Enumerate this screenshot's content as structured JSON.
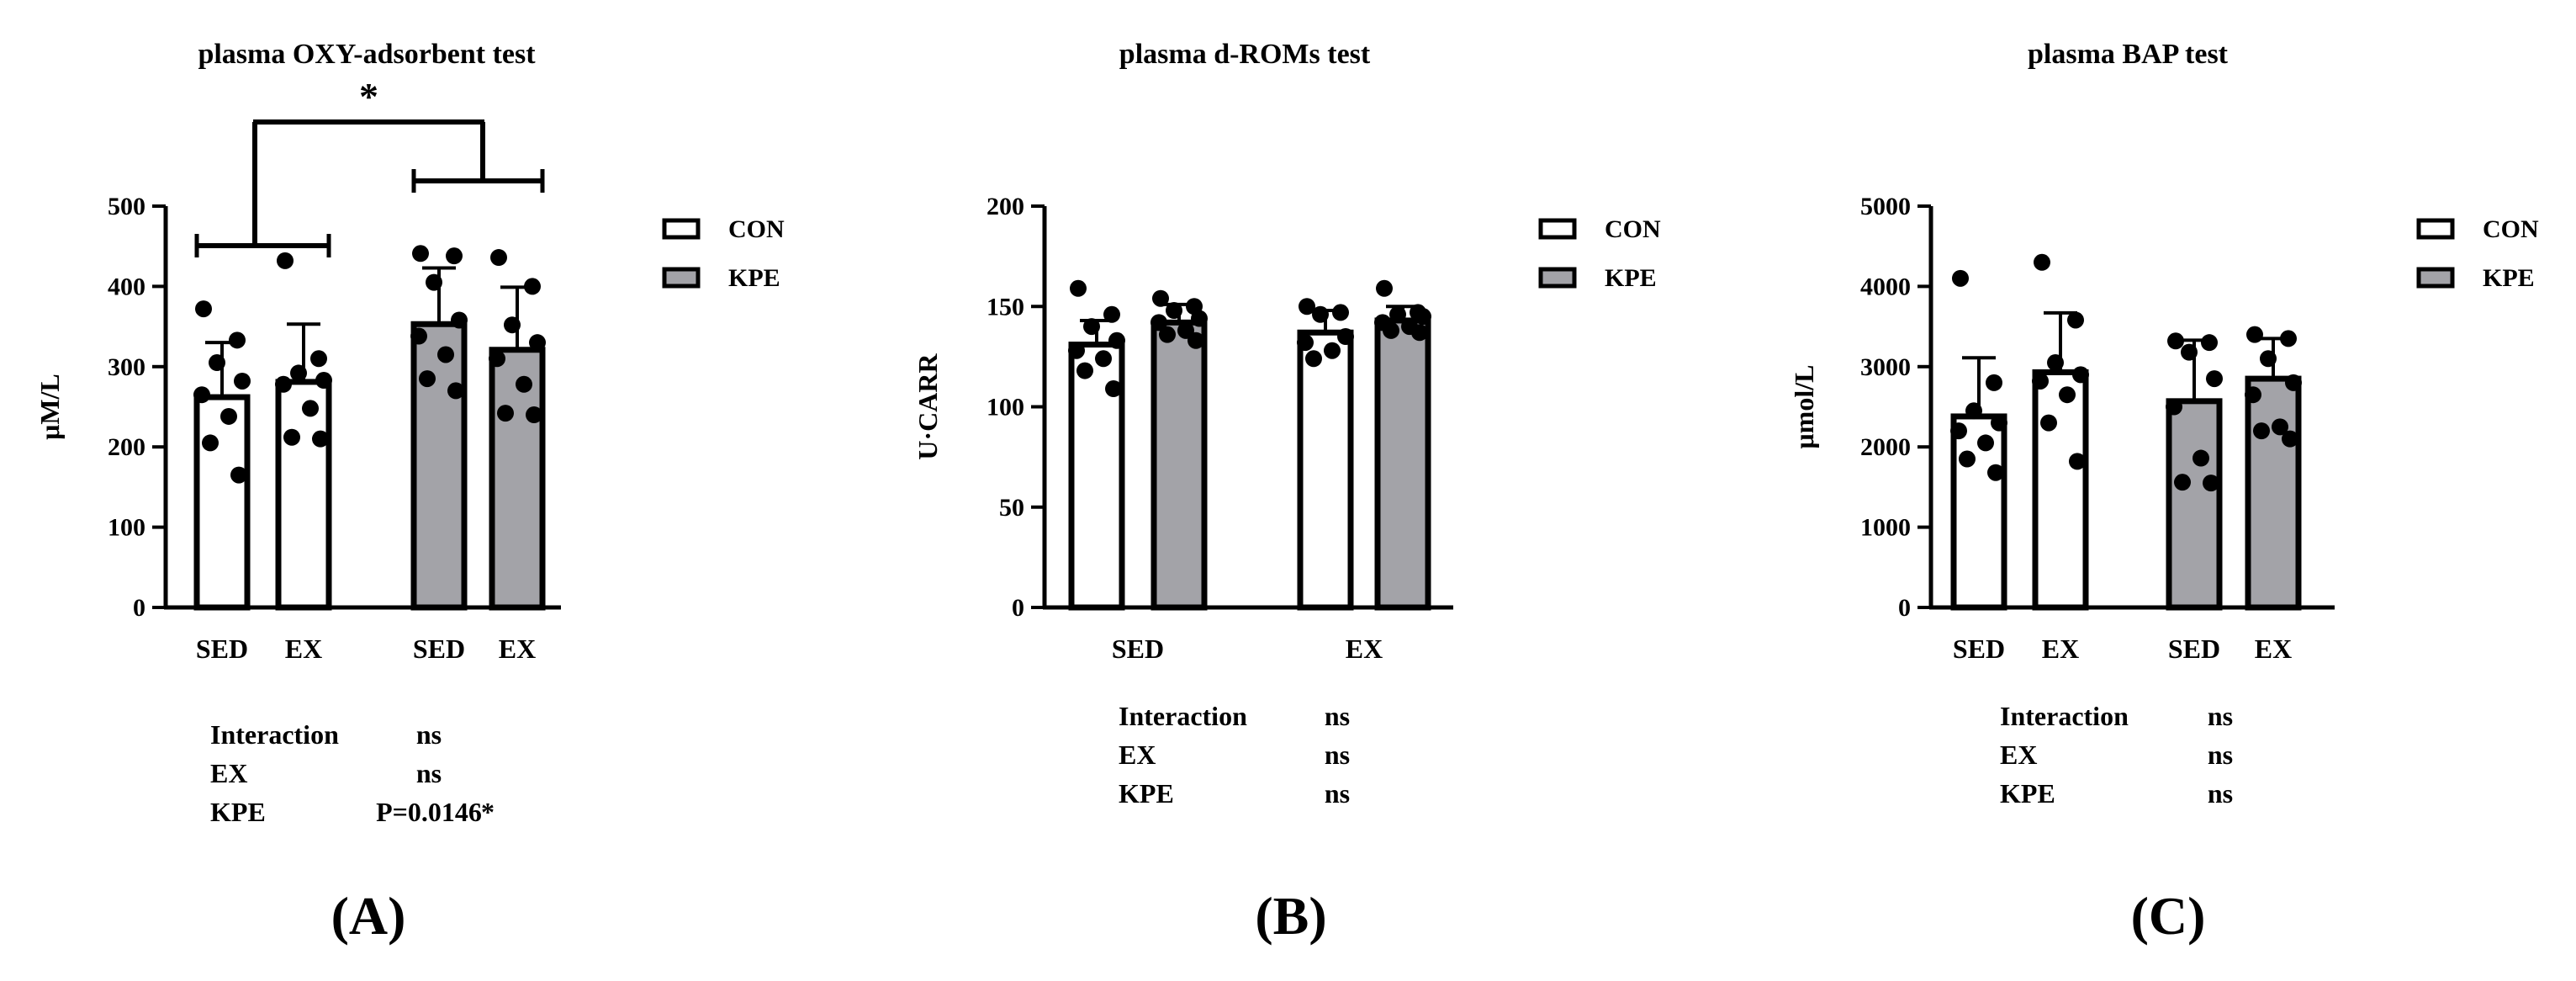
{
  "colors": {
    "con": "#ffffff",
    "kpe": "#a3a3a8",
    "ink": "#000000"
  },
  "chart_data": [
    {
      "type": "bar",
      "title": "plasma OXY-adsorbent test",
      "ylabel": "μM/L",
      "ylim": [
        0,
        500
      ],
      "yticks": [
        "0",
        "100",
        "200",
        "300",
        "400",
        "500"
      ],
      "grouping": "by_group",
      "categories": [
        "SED",
        "EX",
        "SED",
        "EX"
      ],
      "legend": [
        "CON",
        "KPE"
      ],
      "bars": [
        {
          "group": "CON",
          "category": "SED",
          "mean": 262,
          "sd": 68,
          "points": [
            372,
            333,
            305,
            282,
            265,
            238,
            205,
            165
          ]
        },
        {
          "group": "CON",
          "category": "EX",
          "mean": 281,
          "sd": 72,
          "points": [
            432,
            310,
            292,
            283,
            278,
            248,
            212,
            210
          ]
        },
        {
          "group": "KPE",
          "category": "SED",
          "mean": 353,
          "sd": 70,
          "points": [
            441,
            438,
            405,
            358,
            338,
            315,
            285,
            270
          ]
        },
        {
          "group": "KPE",
          "category": "EX",
          "mean": 321,
          "sd": 78,
          "points": [
            436,
            400,
            352,
            330,
            310,
            278,
            242,
            240
          ]
        }
      ],
      "significance": {
        "label": "*"
      },
      "stats": [
        {
          "label": "Interaction",
          "value": "ns",
          "star": ""
        },
        {
          "label": "EX",
          "value": "ns",
          "star": ""
        },
        {
          "label": "KPE",
          "value": "P=0.0146",
          "star": "*"
        }
      ],
      "panel_label": "(A)"
    },
    {
      "type": "bar",
      "title": "plasma d-ROMs test",
      "ylabel": "U·CARR",
      "ylim": [
        0,
        200
      ],
      "yticks": [
        "0",
        "50",
        "100",
        "150",
        "200"
      ],
      "grouping": "by_category",
      "categories": [
        "SED",
        "EX"
      ],
      "legend": [
        "CON",
        "KPE"
      ],
      "bars": [
        {
          "group": "CON",
          "category": "SED",
          "mean": 131,
          "sd": 12,
          "points": [
            159,
            146,
            140,
            133,
            128,
            124,
            118,
            109
          ]
        },
        {
          "group": "KPE",
          "category": "SED",
          "mean": 142,
          "sd": 9,
          "points": [
            154,
            150,
            148,
            144,
            142,
            138,
            136,
            133
          ]
        },
        {
          "group": "CON",
          "category": "EX",
          "mean": 137,
          "sd": 11,
          "points": [
            150,
            147,
            146,
            135,
            132,
            128,
            124
          ]
        },
        {
          "group": "KPE",
          "category": "EX",
          "mean": 143,
          "sd": 7,
          "points": [
            159,
            147,
            146,
            145,
            142,
            140,
            138,
            137
          ]
        }
      ],
      "stats": [
        {
          "label": "Interaction",
          "value": "ns",
          "star": ""
        },
        {
          "label": "EX",
          "value": "ns",
          "star": ""
        },
        {
          "label": "KPE",
          "value": "ns",
          "star": ""
        }
      ],
      "panel_label": "(B)"
    },
    {
      "type": "bar",
      "title": "plasma BAP test",
      "ylabel": "μmol/L",
      "ylim": [
        0,
        5000
      ],
      "yticks": [
        "0",
        "1000",
        "2000",
        "3000",
        "4000",
        "5000"
      ],
      "grouping": "by_group",
      "categories": [
        "SED",
        "EX",
        "SED",
        "EX"
      ],
      "legend": [
        "CON",
        "KPE"
      ],
      "bars": [
        {
          "group": "CON",
          "category": "SED",
          "mean": 2380,
          "sd": 730,
          "points": [
            4100,
            2800,
            2450,
            2300,
            2200,
            2050,
            1850,
            1680
          ]
        },
        {
          "group": "CON",
          "category": "EX",
          "mean": 2930,
          "sd": 740,
          "points": [
            4300,
            3580,
            3050,
            2900,
            2820,
            2650,
            2300,
            1820
          ]
        },
        {
          "group": "KPE",
          "category": "SED",
          "mean": 2570,
          "sd": 760,
          "points": [
            3320,
            3300,
            3180,
            2850,
            2500,
            1860,
            1560,
            1550
          ]
        },
        {
          "group": "KPE",
          "category": "EX",
          "mean": 2850,
          "sd": 500,
          "points": [
            3400,
            3350,
            3100,
            2800,
            2650,
            2250,
            2200,
            2100
          ]
        }
      ],
      "stats": [
        {
          "label": "Interaction",
          "value": "ns",
          "star": ""
        },
        {
          "label": "EX",
          "value": "ns",
          "star": ""
        },
        {
          "label": "KPE",
          "value": "ns",
          "star": ""
        }
      ],
      "panel_label": "(C)"
    }
  ]
}
